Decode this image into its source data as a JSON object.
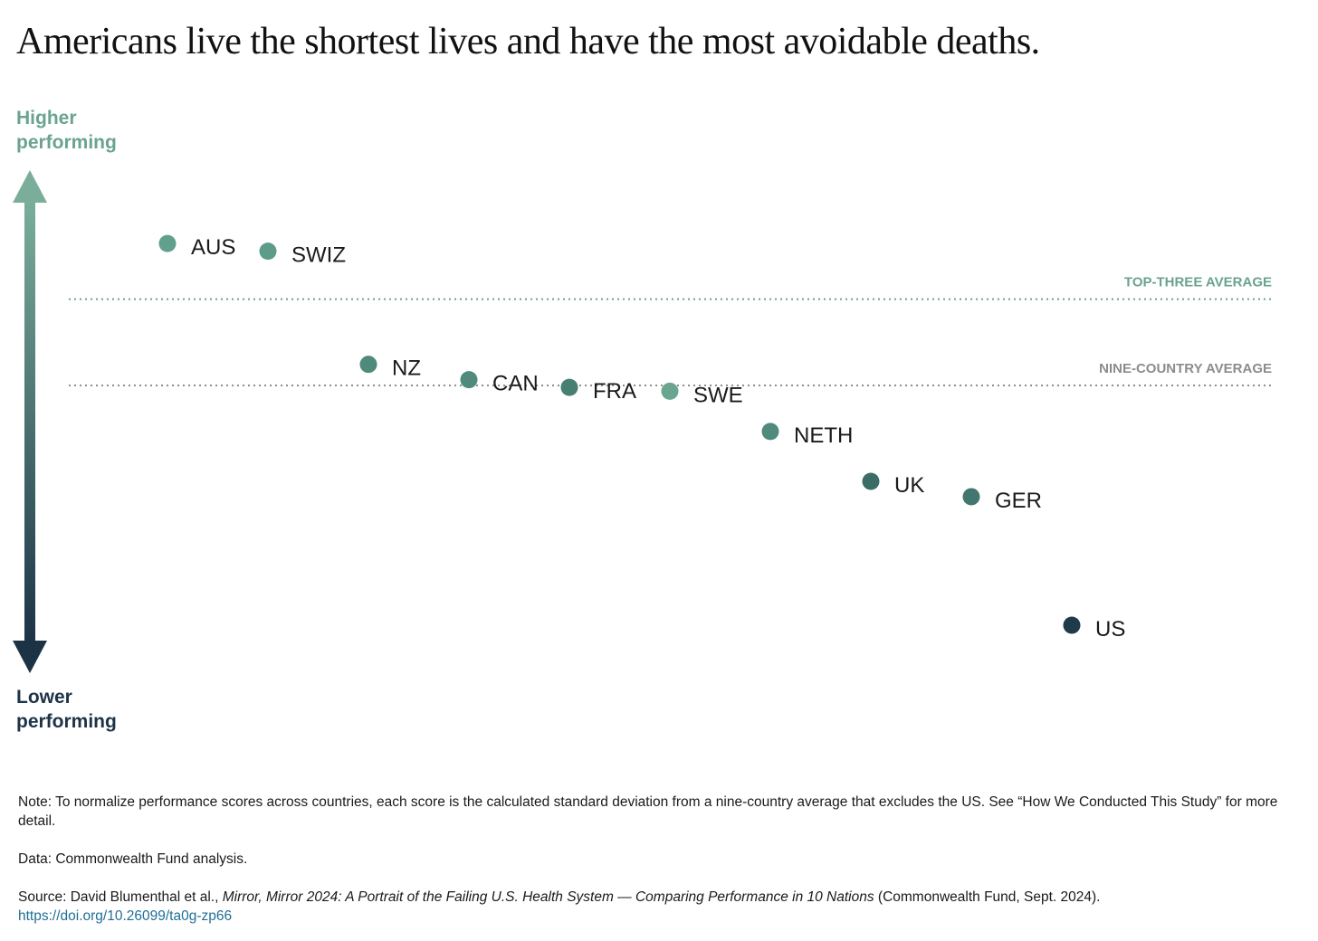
{
  "title": "Americans live the shortest lives and have the most avoidable deaths.",
  "axis": {
    "higher": [
      "Higher",
      "performing"
    ],
    "lower": [
      "Lower",
      "performing"
    ],
    "colors": {
      "top": "#7aae9b",
      "bottom": "#1c3346"
    }
  },
  "chart_data": {
    "type": "scatter",
    "title": "Americans live the shortest lives and have the most avoidable deaths.",
    "xlabel": "",
    "ylabel": "",
    "grid": false,
    "ylim": [
      -2.2,
      1.0
    ],
    "points": [
      {
        "label": "AUS",
        "rank": 1,
        "y": 0.74,
        "color": "#62a08e"
      },
      {
        "label": "SWIZ",
        "rank": 2,
        "y": 0.7,
        "color": "#5e9c8a"
      },
      {
        "label": "NZ",
        "rank": 3,
        "y": 0.11,
        "color": "#4f8a7c"
      },
      {
        "label": "CAN",
        "rank": 4,
        "y": 0.03,
        "color": "#4f8a7c"
      },
      {
        "label": "FRA",
        "rank": 5,
        "y": -0.01,
        "color": "#477f72"
      },
      {
        "label": "SWE",
        "rank": 6,
        "y": -0.03,
        "color": "#6aa58f"
      },
      {
        "label": "NETH",
        "rank": 7,
        "y": -0.24,
        "color": "#4f8a7c"
      },
      {
        "label": "UK",
        "rank": 8,
        "y": -0.5,
        "color": "#3b6c67"
      },
      {
        "label": "GER",
        "rank": 9,
        "y": -0.58,
        "color": "#43766f"
      },
      {
        "label": "US",
        "rank": 10,
        "y": -1.25,
        "color": "#1f3a4b"
      }
    ],
    "reference_lines": [
      {
        "label": "TOP-THREE AVERAGE",
        "y": 0.45,
        "color": "#6aa38f"
      },
      {
        "label": "NINE-COUNTRY AVERAGE",
        "y": 0.0,
        "color": "#8c8c8c"
      }
    ]
  },
  "notes": {
    "note": "Note: To normalize performance scores across countries, each score is the calculated standard deviation from a nine-country average that excludes the US. See “How We Conducted This Study” for more detail.",
    "data": "Data: Commonwealth Fund analysis.",
    "source_prefix": "Source: David Blumenthal et al., ",
    "source_title": "Mirror, Mirror 2024: A Portrait of the Failing U.S. Health System — Comparing Performance in 10 Nations",
    "source_suffix": " (Commonwealth Fund, Sept. 2024).",
    "link": "https://doi.org/10.26099/ta0g-zp66"
  }
}
